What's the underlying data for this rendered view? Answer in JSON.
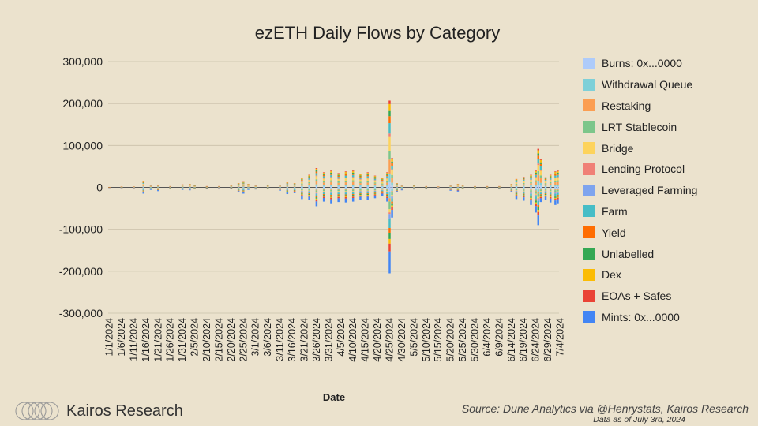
{
  "chart_data": {
    "type": "bar",
    "stacked": true,
    "title": "ezETH Daily Flows by Category",
    "xlabel": "Date",
    "ylabel": "",
    "ylim": [
      -300000,
      300000
    ],
    "yticks": [
      300000,
      200000,
      100000,
      0,
      -100000,
      -200000,
      -300000
    ],
    "ytick_labels": [
      "300,000",
      "200,000",
      "100,000",
      "0",
      "-100,000",
      "-200,000",
      "-300,000"
    ],
    "xtick_labels": [
      "1/1/2024",
      "1/6/2024",
      "1/11/2024",
      "1/16/2024",
      "1/21/2024",
      "1/26/2024",
      "1/31/2024",
      "2/5/2024",
      "2/10/2024",
      "2/15/2024",
      "2/20/2024",
      "2/25/2024",
      "3/1/2024",
      "3/6/2024",
      "3/11/2024",
      "3/16/2024",
      "3/21/2024",
      "3/26/2024",
      "3/31/2024",
      "4/5/2024",
      "4/10/2024",
      "4/15/2024",
      "4/20/2024",
      "4/25/2024",
      "4/30/2024",
      "5/5/2024",
      "5/10/2024",
      "5/15/2024",
      "5/20/2024",
      "5/25/2024",
      "5/30/2024",
      "6/4/2024",
      "6/9/2024",
      "6/14/2024",
      "6/19/2024",
      "6/24/2024",
      "6/29/2024",
      "7/4/2024"
    ],
    "grid": true,
    "legend_position": "right",
    "series": [
      {
        "name": "Burns: 0x...0000",
        "color": "#aecbfa"
      },
      {
        "name": "Withdrawal Queue",
        "color": "#7ed0d8"
      },
      {
        "name": "Restaking",
        "color": "#fb9e52"
      },
      {
        "name": "LRT Stablecoin",
        "color": "#7cc68a"
      },
      {
        "name": "Bridge",
        "color": "#fdd35c"
      },
      {
        "name": "Lending Protocol",
        "color": "#f08076"
      },
      {
        "name": "Leveraged Farming",
        "color": "#7ea4ee"
      },
      {
        "name": "Farm",
        "color": "#46bdc6"
      },
      {
        "name": "Yield",
        "color": "#ff6d01"
      },
      {
        "name": "Unlabelled",
        "color": "#34a853"
      },
      {
        "name": "Dex",
        "color": "#fbbc04"
      },
      {
        "name": "EOAs + Safes",
        "color": "#ea4335"
      },
      {
        "name": "Mints: 0x...0000",
        "color": "#4285f4"
      }
    ],
    "daily_totals_note": "Approximate stacked positive/negative totals per day (ETH), read from chart",
    "daily": [
      {
        "date": "1/1/2024",
        "pos": 1000,
        "neg": -1000
      },
      {
        "date": "1/6/2024",
        "pos": 1500,
        "neg": -1500
      },
      {
        "date": "1/11/2024",
        "pos": 2000,
        "neg": -2000
      },
      {
        "date": "1/15/2024",
        "pos": 14000,
        "neg": -15000
      },
      {
        "date": "1/18/2024",
        "pos": 6000,
        "neg": -6000
      },
      {
        "date": "1/21/2024",
        "pos": 4000,
        "neg": -9000
      },
      {
        "date": "1/26/2024",
        "pos": 3000,
        "neg": -4000
      },
      {
        "date": "1/31/2024",
        "pos": 7000,
        "neg": -6000
      },
      {
        "date": "2/3/2024",
        "pos": 8000,
        "neg": -7000
      },
      {
        "date": "2/5/2024",
        "pos": 5000,
        "neg": -4000
      },
      {
        "date": "2/10/2024",
        "pos": 3000,
        "neg": -3000
      },
      {
        "date": "2/15/2024",
        "pos": 3000,
        "neg": -2000
      },
      {
        "date": "2/20/2024",
        "pos": 4000,
        "neg": -3000
      },
      {
        "date": "2/23/2024",
        "pos": 10000,
        "neg": -12000
      },
      {
        "date": "2/25/2024",
        "pos": 13000,
        "neg": -15000
      },
      {
        "date": "2/27/2024",
        "pos": 8000,
        "neg": -6000
      },
      {
        "date": "3/1/2024",
        "pos": 6000,
        "neg": -5000
      },
      {
        "date": "3/6/2024",
        "pos": 5000,
        "neg": -4000
      },
      {
        "date": "3/11/2024",
        "pos": 6000,
        "neg": -8000
      },
      {
        "date": "3/14/2024",
        "pos": 12000,
        "neg": -16000
      },
      {
        "date": "3/17/2024",
        "pos": 10000,
        "neg": -14000
      },
      {
        "date": "3/20/2024",
        "pos": 22000,
        "neg": -28000
      },
      {
        "date": "3/23/2024",
        "pos": 30000,
        "neg": -30000
      },
      {
        "date": "3/26/2024",
        "pos": 46000,
        "neg": -45000
      },
      {
        "date": "3/29/2024",
        "pos": 36000,
        "neg": -34000
      },
      {
        "date": "4/1/2024",
        "pos": 40000,
        "neg": -38000
      },
      {
        "date": "4/4/2024",
        "pos": 34000,
        "neg": -35000
      },
      {
        "date": "4/7/2024",
        "pos": 38000,
        "neg": -36000
      },
      {
        "date": "4/10/2024",
        "pos": 40000,
        "neg": -34000
      },
      {
        "date": "4/13/2024",
        "pos": 32000,
        "neg": -30000
      },
      {
        "date": "4/16/2024",
        "pos": 36000,
        "neg": -30000
      },
      {
        "date": "4/19/2024",
        "pos": 28000,
        "neg": -26000
      },
      {
        "date": "4/22/2024",
        "pos": 22000,
        "neg": -20000
      },
      {
        "date": "4/24/2024",
        "pos": 36000,
        "neg": -34000
      },
      {
        "date": "4/25/2024",
        "pos": 207000,
        "neg": -205000
      },
      {
        "date": "4/26/2024",
        "pos": 70000,
        "neg": -72000
      },
      {
        "date": "4/28/2024",
        "pos": 10000,
        "neg": -12000
      },
      {
        "date": "4/30/2024",
        "pos": 6000,
        "neg": -7000
      },
      {
        "date": "5/5/2024",
        "pos": 5000,
        "neg": -5000
      },
      {
        "date": "5/10/2024",
        "pos": 3000,
        "neg": -3000
      },
      {
        "date": "5/15/2024",
        "pos": 2000,
        "neg": -2000
      },
      {
        "date": "5/20/2024",
        "pos": 6000,
        "neg": -8000
      },
      {
        "date": "5/23/2024",
        "pos": 8000,
        "neg": -10000
      },
      {
        "date": "5/25/2024",
        "pos": 4000,
        "neg": -4000
      },
      {
        "date": "5/30/2024",
        "pos": 3000,
        "neg": -4000
      },
      {
        "date": "6/4/2024",
        "pos": 3000,
        "neg": -3000
      },
      {
        "date": "6/9/2024",
        "pos": 3000,
        "neg": -3000
      },
      {
        "date": "6/14/2024",
        "pos": 8000,
        "neg": -12000
      },
      {
        "date": "6/16/2024",
        "pos": 20000,
        "neg": -28000
      },
      {
        "date": "6/19/2024",
        "pos": 25000,
        "neg": -32000
      },
      {
        "date": "6/22/2024",
        "pos": 30000,
        "neg": -42000
      },
      {
        "date": "6/24/2024",
        "pos": 40000,
        "neg": -60000
      },
      {
        "date": "6/25/2024",
        "pos": 92000,
        "neg": -90000
      },
      {
        "date": "6/26/2024",
        "pos": 68000,
        "neg": -35000
      },
      {
        "date": "6/28/2024",
        "pos": 24000,
        "neg": -30000
      },
      {
        "date": "6/30/2024",
        "pos": 30000,
        "neg": -36000
      },
      {
        "date": "7/2/2024",
        "pos": 38000,
        "neg": -42000
      },
      {
        "date": "7/3/2024",
        "pos": 40000,
        "neg": -38000
      }
    ]
  },
  "footer": {
    "brand": "Kairos Research",
    "source": "Source: Dune Analytics via @Henrystats, Kairos Research",
    "as_of": "Data as of July 3rd, 2024"
  }
}
